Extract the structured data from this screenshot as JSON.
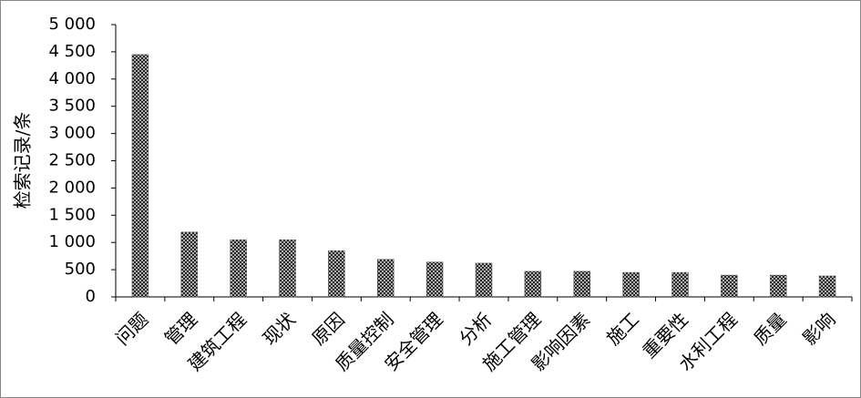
{
  "chart_data": {
    "type": "bar",
    "y_label": "检索记录/条",
    "categories": [
      "问题",
      "管理",
      "建筑工程",
      "现状",
      "原因",
      "质量控制",
      "安全管理",
      "分析",
      "施工管理",
      "影响因素",
      "施工",
      "重要性",
      "水利工程",
      "质量",
      "影响"
    ],
    "values": [
      4450,
      1190,
      1050,
      1050,
      850,
      690,
      640,
      620,
      470,
      470,
      450,
      450,
      400,
      400,
      385
    ],
    "color": "#222222",
    "ylim": [
      0,
      5000
    ],
    "yticks": [
      0,
      500,
      {
        "value": 1000,
        "label": "1 000"
      },
      {
        "value": 1500,
        "label": "1 500"
      },
      {
        "value": 2000,
        "label": "2 000"
      },
      {
        "value": 2500,
        "label": "2 500"
      },
      {
        "value": 3000,
        "label": "3 000"
      },
      {
        "value": 3500,
        "label": "3 500"
      },
      {
        "value": 4000,
        "label": "4 000"
      },
      {
        "value": 4500,
        "label": "4 500"
      },
      {
        "value": 5000,
        "label": "5 000"
      }
    ],
    "grid": false
  }
}
